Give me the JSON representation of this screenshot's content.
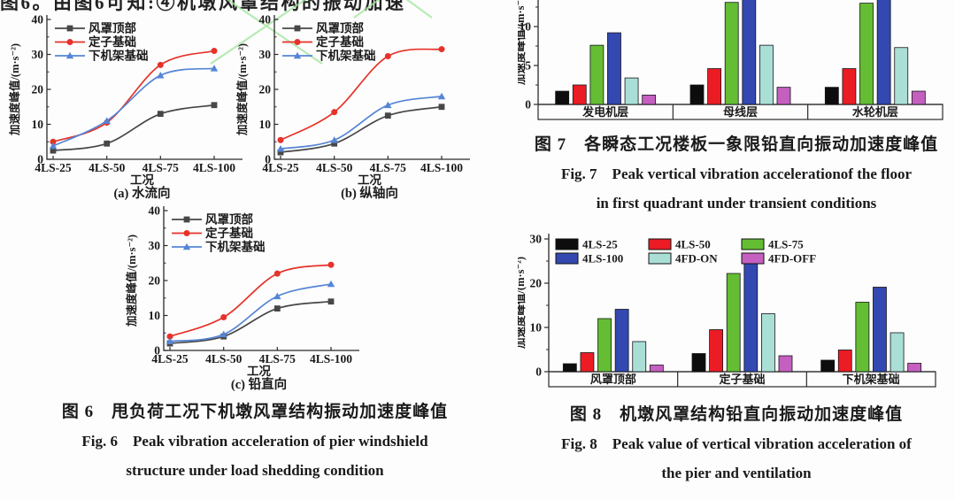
{
  "page": {
    "top_cropped_line": "图6。由图6可知:④机墩风罩结构的振动加速"
  },
  "captions": {
    "fig6": {
      "zh": "图 6　甩负荷工况下机墩风罩结构振动加速度峰值",
      "en_line1": "Fig. 6  Peak vibration acceleration of pier windshield",
      "en_line2": "structure under load shedding condition"
    },
    "fig7": {
      "zh": "图 7　各瞬态工况楼板一象限铅直向振动加速度峰值",
      "en_line1": "Fig. 7  Peak vertical vibration accelerationof the floor",
      "en_line2": "in first quadrant under transient conditions"
    },
    "fig8": {
      "zh": "图 8　机墩风罩结构铅直向振动加速度峰值",
      "en_line1": "Fig. 8  Peak value of vertical vibration acceleration of",
      "en_line2": "the pier and ventilation"
    }
  },
  "colors": {
    "line_black": "#474747",
    "line_red": "#e63229",
    "line_blue": "#5585d6",
    "bar_black": "#0d0d0d",
    "bar_red": "#ec1c24",
    "bar_green": "#64bd32",
    "bar_blue": "#3348b0",
    "bar_cyan": "#aadfd6",
    "bar_magenta": "#c55fc0",
    "watermark_green": "#9fe49b",
    "axis": "#2a2a2a"
  },
  "chart_data": [
    {
      "id": "fig6a",
      "type": "line",
      "title": "(a) 水流向",
      "xlabel": "工况",
      "ylabel": "加速度峰值/(m·s⁻²)",
      "categories": [
        "4LS-25",
        "4LS-50",
        "4LS-75",
        "4LS-100"
      ],
      "ylim": [
        0,
        40
      ],
      "yticks": [
        0,
        10,
        20,
        30,
        40
      ],
      "grid": false,
      "legend_position": "top-left",
      "series": [
        {
          "name": "风罩顶部",
          "marker": "square",
          "color": "#474747",
          "values": [
            2.5,
            4.5,
            13.0,
            15.5
          ]
        },
        {
          "name": "定子基础",
          "marker": "circle",
          "color": "#e63229",
          "values": [
            5.0,
            10.5,
            27.0,
            31.0
          ]
        },
        {
          "name": "下机架基础",
          "marker": "triangle",
          "color": "#5585d6",
          "values": [
            3.8,
            11.0,
            24.0,
            26.0
          ]
        }
      ]
    },
    {
      "id": "fig6b",
      "type": "line",
      "title": "(b) 纵轴向",
      "xlabel": "工况",
      "ylabel": "加速度峰值/(m·s⁻²)",
      "categories": [
        "4LS-25",
        "4LS-50",
        "4LS-75",
        "4LS-100"
      ],
      "ylim": [
        0,
        40
      ],
      "yticks": [
        0,
        10,
        20,
        30,
        40
      ],
      "grid": false,
      "legend_position": "top-left",
      "series": [
        {
          "name": "风罩顶部",
          "marker": "square",
          "color": "#474747",
          "values": [
            2.0,
            4.5,
            12.5,
            15.0
          ]
        },
        {
          "name": "定子基础",
          "marker": "circle",
          "color": "#e63229",
          "values": [
            5.5,
            13.5,
            29.5,
            31.5
          ]
        },
        {
          "name": "下机架基础",
          "marker": "triangle",
          "color": "#5585d6",
          "values": [
            3.0,
            5.5,
            15.5,
            18.0
          ]
        }
      ]
    },
    {
      "id": "fig6c",
      "type": "line",
      "title": "(c) 铅直向",
      "xlabel": "工况",
      "ylabel": "加速度峰值/(m·s⁻²)",
      "categories": [
        "4LS-25",
        "4LS-50",
        "4LS-75",
        "4LS-100"
      ],
      "ylim": [
        0,
        40
      ],
      "yticks": [
        0,
        10,
        20,
        30,
        40
      ],
      "grid": false,
      "legend_position": "top-left",
      "series": [
        {
          "name": "风罩顶部",
          "marker": "square",
          "color": "#474747",
          "values": [
            2.0,
            4.0,
            12.0,
            14.0
          ]
        },
        {
          "name": "定子基础",
          "marker": "circle",
          "color": "#e63229",
          "values": [
            4.0,
            9.5,
            22.0,
            24.5
          ]
        },
        {
          "name": "下机架基础",
          "marker": "triangle",
          "color": "#5585d6",
          "values": [
            2.6,
            4.6,
            15.5,
            19.0
          ]
        }
      ]
    },
    {
      "id": "fig7",
      "type": "bar",
      "ylabel": "加速度峰值/(m·s⁻²)",
      "categories": [
        "发电机层",
        "母线层",
        "水轮机层"
      ],
      "yticks_visible": [
        0,
        5,
        10
      ],
      "ylim_visible": [
        0,
        13.4
      ],
      "note": "chart top cropped by screenshot edge; 4LS-100 bars of 母线层 and 水轮机层 extend beyond visible area",
      "legend_visible": false,
      "series": [
        {
          "name": "4LS-25",
          "color": "#0d0d0d",
          "values": [
            1.7,
            2.5,
            2.2
          ]
        },
        {
          "name": "4LS-50",
          "color": "#ec1c24",
          "values": [
            2.5,
            4.6,
            4.6
          ]
        },
        {
          "name": "4LS-75",
          "color": "#64bd32",
          "values": [
            7.6,
            13.1,
            13.0
          ]
        },
        {
          "name": "4LS-100",
          "color": "#3348b0",
          "values": [
            9.2,
            14.8,
            14.8
          ]
        },
        {
          "name": "4FD-ON",
          "color": "#aadfd6",
          "values": [
            3.4,
            7.6,
            7.3
          ]
        },
        {
          "name": "4FD-OFF",
          "color": "#c55fc0",
          "values": [
            1.2,
            2.2,
            1.7
          ]
        }
      ]
    },
    {
      "id": "fig8",
      "type": "bar",
      "ylabel": "加速度峰值/(m·s⁻²)",
      "categories": [
        "风罩顶部",
        "定子基础",
        "下机架基础"
      ],
      "ylim": [
        0,
        30
      ],
      "yticks": [
        0,
        10,
        20,
        30
      ],
      "legend_position": "top-left",
      "legend_visible": true,
      "series": [
        {
          "name": "4LS-25",
          "color": "#0d0d0d",
          "values": [
            1.8,
            4.1,
            2.6
          ]
        },
        {
          "name": "4LS-50",
          "color": "#ec1c24",
          "values": [
            4.3,
            9.5,
            4.9
          ]
        },
        {
          "name": "4LS-75",
          "color": "#64bd32",
          "values": [
            12.0,
            22.2,
            15.7
          ]
        },
        {
          "name": "4LS-100",
          "color": "#3348b0",
          "values": [
            14.1,
            24.6,
            19.1
          ]
        },
        {
          "name": "4FD-ON",
          "color": "#aadfd6",
          "values": [
            6.8,
            13.1,
            8.8
          ]
        },
        {
          "name": "4FD-OFF",
          "color": "#c55fc0",
          "values": [
            1.5,
            3.6,
            1.9
          ]
        }
      ]
    }
  ]
}
